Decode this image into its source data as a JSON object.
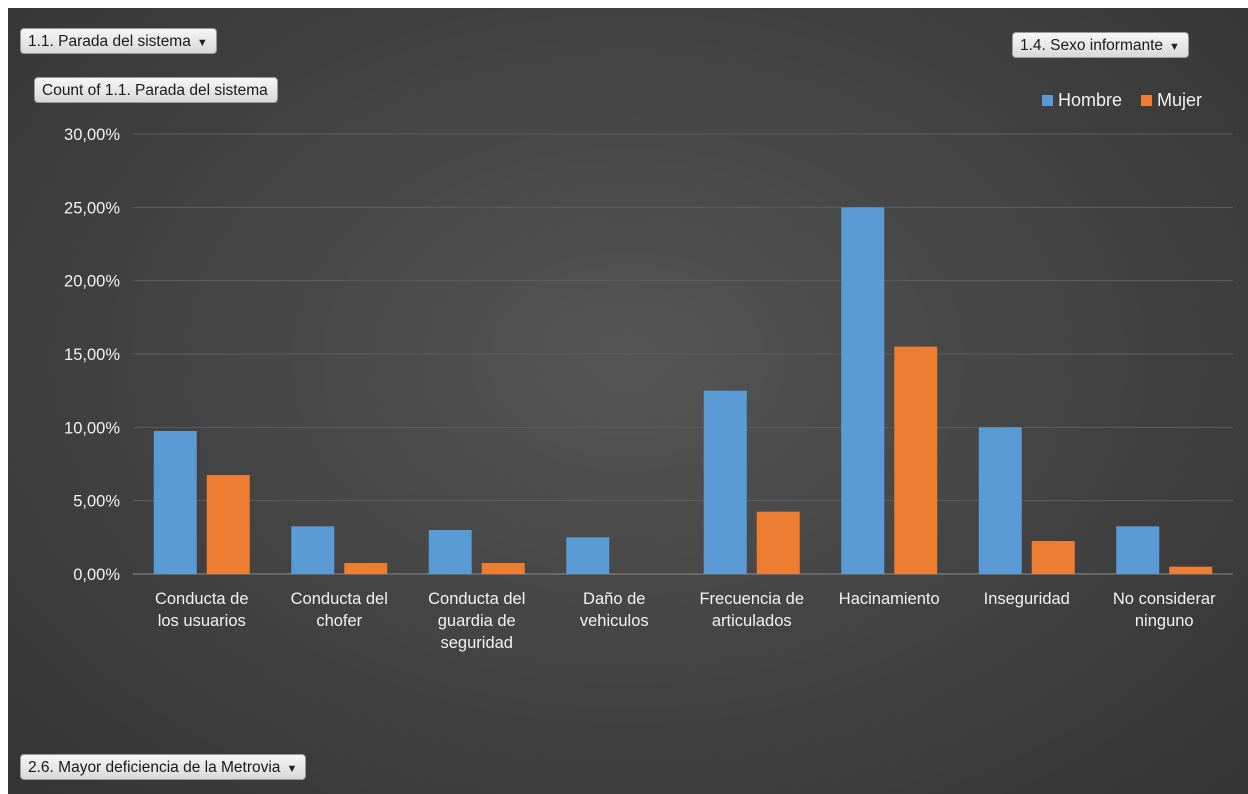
{
  "filters": {
    "field_button": "1.1. Parada del sistema",
    "legend_field_button": "1.4. Sexo informante",
    "values_button": "Count of 1.1. Parada del sistema",
    "axis_field_button": "2.6. Mayor deficiencia de la Metrovia",
    "dropdown_icon": "triangle-down-icon"
  },
  "colors": {
    "background": "#454545",
    "hombre": "#5b9bd5",
    "mujer": "#ed7d31",
    "grid": "#5e5e5e",
    "text": "#f2f2f2"
  },
  "chart_data": {
    "type": "bar",
    "title": "",
    "xlabel": "",
    "ylabel": "",
    "ylim": [
      0,
      30
    ],
    "yticks": [
      "0,00%",
      "5,00%",
      "10,00%",
      "15,00%",
      "20,00%",
      "25,00%",
      "30,00%"
    ],
    "grid": true,
    "legend_position": "top-right",
    "categories": [
      [
        "Conducta de",
        "los usuarios"
      ],
      [
        "Conducta del",
        "chofer"
      ],
      [
        "Conducta del",
        "guardia de",
        "seguridad"
      ],
      [
        "Daño de",
        "vehiculos"
      ],
      [
        "Frecuencia de",
        "articulados"
      ],
      [
        "Hacinamiento"
      ],
      [
        "Inseguridad"
      ],
      [
        "No considerar",
        "ninguno"
      ]
    ],
    "series": [
      {
        "name": "Hombre",
        "values": [
          9.75,
          3.25,
          3.0,
          2.5,
          12.5,
          25.0,
          10.0,
          3.25
        ]
      },
      {
        "name": "Mujer",
        "values": [
          6.75,
          0.75,
          0.75,
          0.0,
          4.25,
          15.5,
          2.25,
          0.5
        ]
      }
    ]
  }
}
